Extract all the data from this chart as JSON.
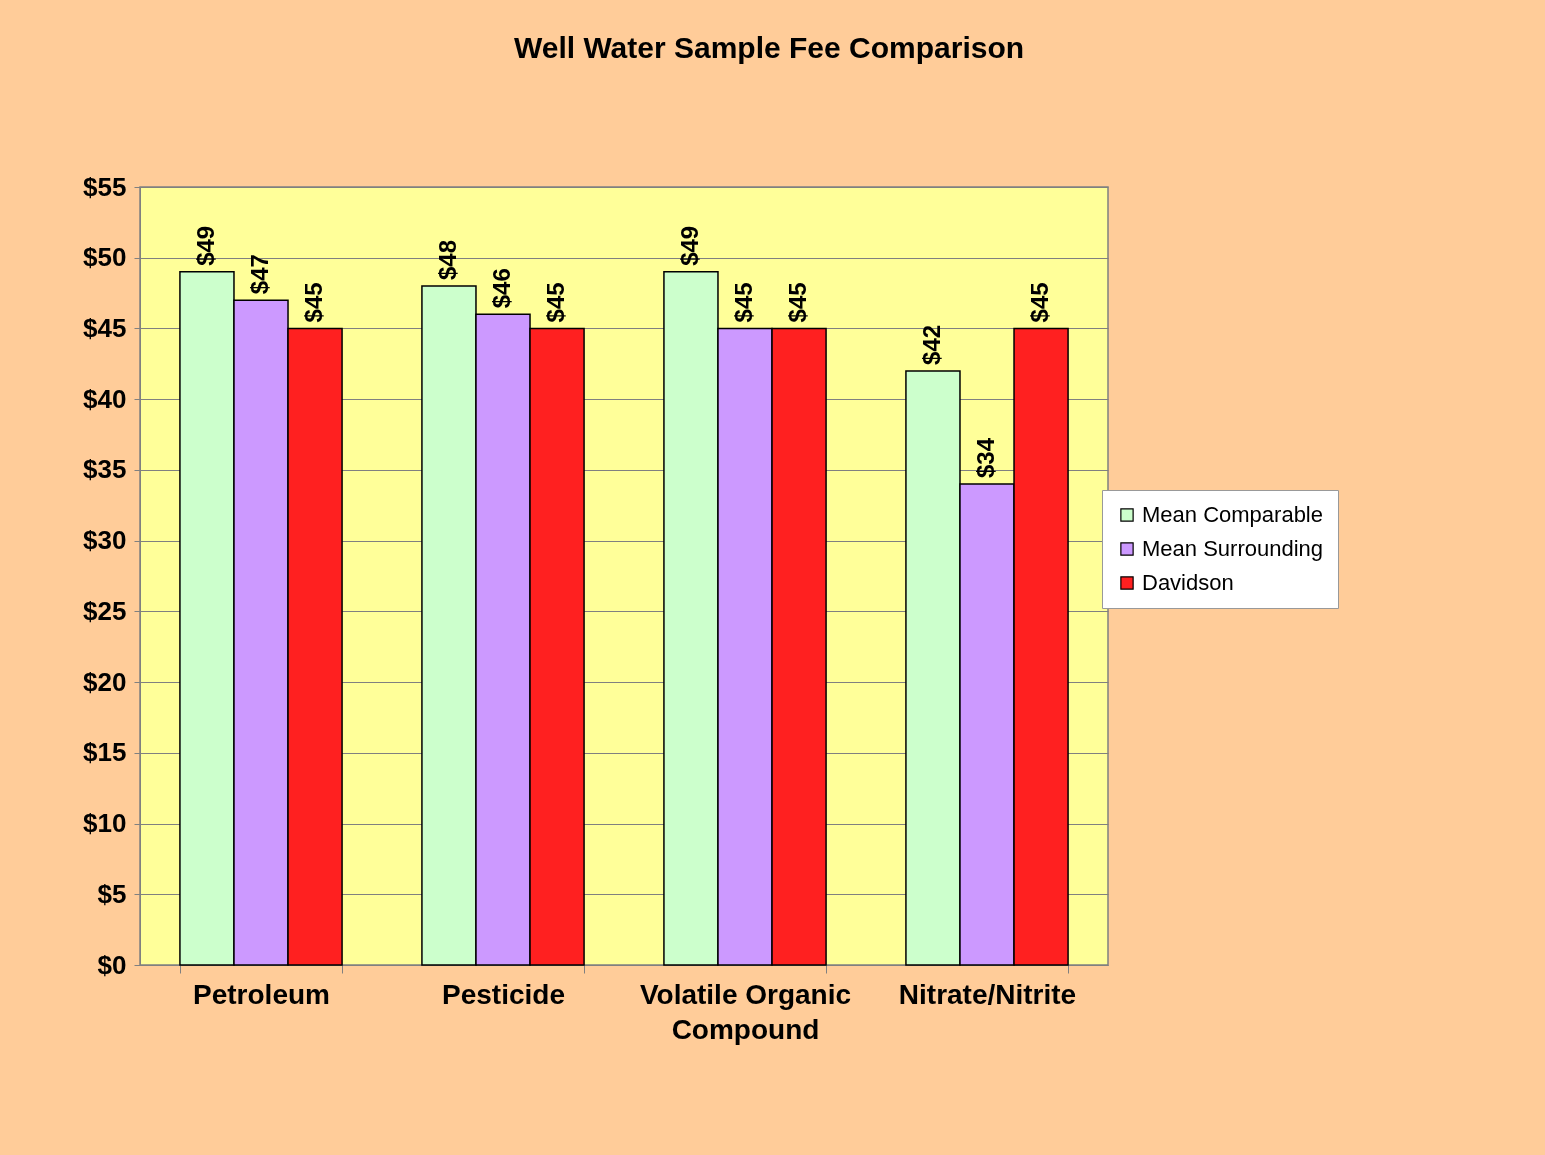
{
  "chart_data": {
    "type": "bar",
    "title": "Well Water Sample Fee Comparison",
    "categories": [
      "Petroleum",
      "Pesticide",
      "Volatile Organic Compound",
      "Nitrate/Nitrite"
    ],
    "series": [
      {
        "name": "Mean Comparable",
        "color": "#ccffcc",
        "values": [
          49,
          48,
          49,
          42
        ],
        "value_labels": [
          "$49",
          "$48",
          "$49",
          "$42"
        ]
      },
      {
        "name": "Mean Surrounding",
        "color": "#cc99ff",
        "values": [
          47,
          46,
          45,
          34
        ],
        "value_labels": [
          "$47",
          "$46",
          "$45",
          "$34"
        ]
      },
      {
        "name": "Davidson",
        "color": "#ff2020",
        "values": [
          45,
          45,
          45,
          45
        ],
        "value_labels": [
          "$45",
          "$45",
          "$45",
          "$45"
        ]
      }
    ],
    "ylim": [
      0,
      55
    ],
    "yticks": [
      {
        "value": 0,
        "label": "$0"
      },
      {
        "value": 5,
        "label": "$5"
      },
      {
        "value": 10,
        "label": "$10"
      },
      {
        "value": 15,
        "label": "$15"
      },
      {
        "value": 20,
        "label": "$20"
      },
      {
        "value": 25,
        "label": "$25"
      },
      {
        "value": 30,
        "label": "$30"
      },
      {
        "value": 35,
        "label": "$35"
      },
      {
        "value": 40,
        "label": "$40"
      },
      {
        "value": 45,
        "label": "$45"
      },
      {
        "value": 50,
        "label": "$50"
      },
      {
        "value": 55,
        "label": "$55"
      }
    ],
    "grid": "y",
    "legend": "right"
  }
}
